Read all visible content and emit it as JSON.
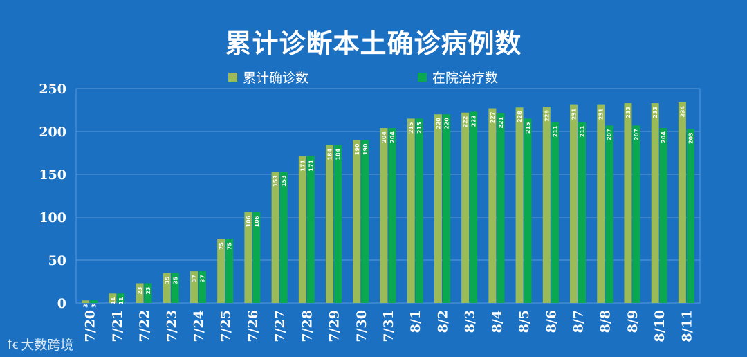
{
  "chart_data": {
    "type": "bar",
    "title": "累计诊断本土确诊病例数",
    "categories": [
      "7/20",
      "7/21",
      "7/22",
      "7/23",
      "7/24",
      "7/25",
      "7/26",
      "7/27",
      "7/28",
      "7/29",
      "7/30",
      "7/31",
      "8/1",
      "8/2",
      "8/3",
      "8/4",
      "8/5",
      "8/6",
      "8/7",
      "8/8",
      "8/9",
      "8/10",
      "8/11"
    ],
    "series": [
      {
        "name": "累计确诊数",
        "color": "#9bbb59",
        "values": [
          3,
          11,
          23,
          35,
          37,
          75,
          106,
          153,
          171,
          184,
          190,
          204,
          215,
          220,
          222,
          227,
          228,
          229,
          231,
          231,
          233,
          233,
          234
        ]
      },
      {
        "name": "在院治疗数",
        "color": "#0aa84f",
        "values": [
          3,
          11,
          23,
          35,
          37,
          75,
          106,
          153,
          171,
          184,
          190,
          204,
          215,
          220,
          223,
          221,
          215,
          211,
          211,
          207,
          207,
          204,
          203
        ]
      }
    ],
    "ylim": [
      0,
      250
    ],
    "yticks": [
      "0",
      "50",
      "100",
      "150",
      "200",
      "250"
    ],
    "grid": true,
    "legend": "top-center",
    "xlabel": "",
    "ylabel": ""
  },
  "watermark": {
    "logo": "ꝉꞓ",
    "text": "大数跨境"
  }
}
